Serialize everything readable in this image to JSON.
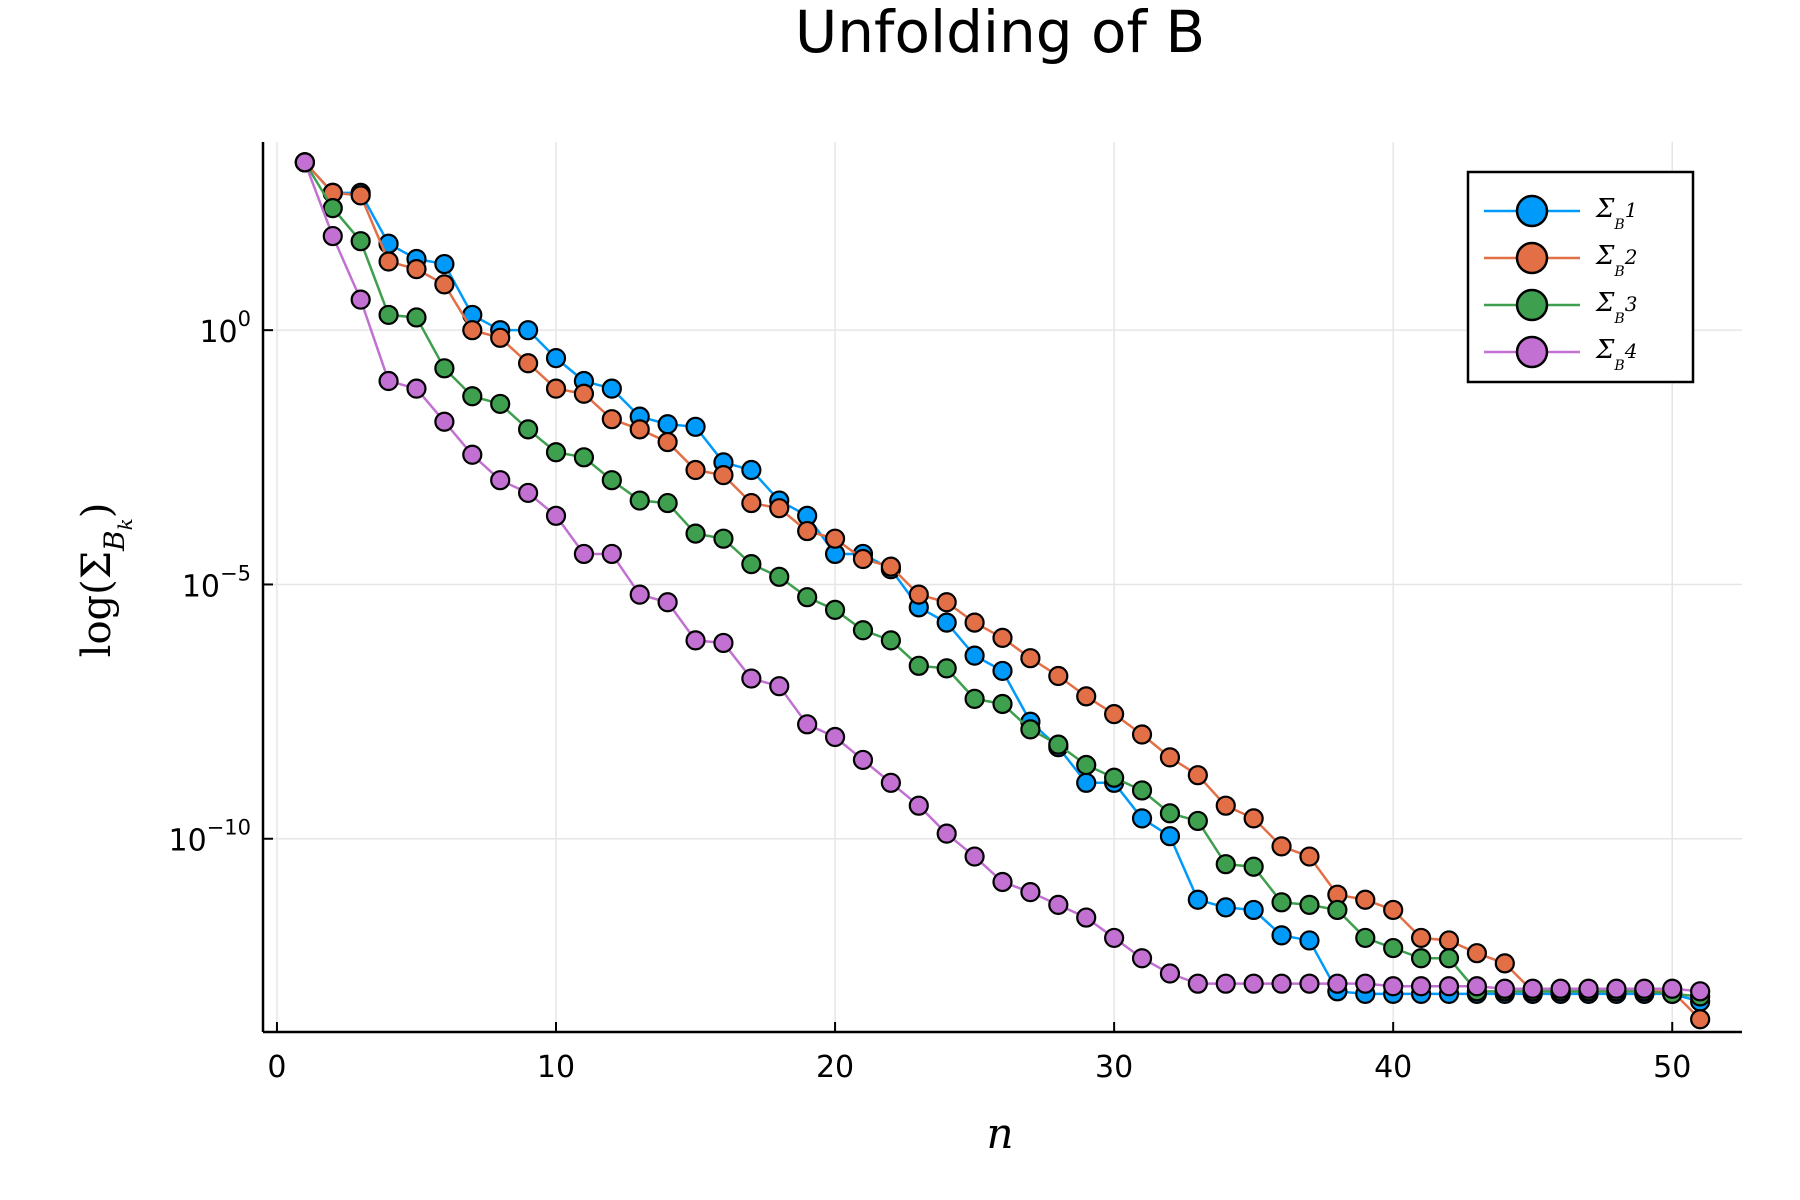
{
  "chart_data": {
    "type": "line",
    "title": "Unfolding of B",
    "xlabel": "n",
    "ylabel": "log(Σ_{B_k})",
    "yscale": "log10",
    "xlim": [
      -0.5,
      52.5
    ],
    "ylim_log10": [
      -13.8,
      3.7
    ],
    "xticks": [
      0,
      10,
      20,
      30,
      40,
      50
    ],
    "yticks": [
      {
        "exp": 0,
        "base": "10",
        "sup": "0"
      },
      {
        "exp": -5,
        "base": "10",
        "sup": "−5"
      },
      {
        "exp": -10,
        "base": "10",
        "sup": "−10"
      }
    ],
    "grid": true,
    "legend_position": "top-right",
    "x": [
      1,
      2,
      3,
      4,
      5,
      6,
      7,
      8,
      9,
      10,
      11,
      12,
      13,
      14,
      15,
      16,
      17,
      18,
      19,
      20,
      21,
      22,
      23,
      24,
      25,
      26,
      27,
      28,
      29,
      30,
      31,
      32,
      33,
      34,
      35,
      36,
      37,
      38,
      39,
      40,
      41,
      42,
      43,
      44,
      45,
      46,
      47,
      48,
      49,
      50,
      51
    ],
    "series": [
      {
        "name": "Σ_B1",
        "legend_main": "Σ",
        "legend_sub": "B",
        "legend_idx": "1",
        "color": "#009AFA",
        "log10_values": [
          3.3,
          2.7,
          2.7,
          1.7,
          1.4,
          1.3,
          0.3,
          0.0,
          0.0,
          -0.55,
          -1.0,
          -1.15,
          -1.7,
          -1.85,
          -1.9,
          -2.6,
          -2.75,
          -3.35,
          -3.65,
          -4.4,
          -4.4,
          -4.7,
          -5.45,
          -5.75,
          -6.4,
          -6.7,
          -7.7,
          -8.2,
          -8.9,
          -8.9,
          -9.6,
          -9.95,
          -11.2,
          -11.35,
          -11.4,
          -11.9,
          -12.0,
          -13.0,
          -13.05,
          -13.05,
          -13.05,
          -13.05,
          -13.05,
          -13.05,
          -13.05,
          -13.05,
          -13.05,
          -13.05,
          -13.05,
          -13.05,
          -13.2
        ]
      },
      {
        "name": "Σ_B2",
        "legend_main": "Σ",
        "legend_sub": "B",
        "legend_idx": "2",
        "color": "#E26F46",
        "log10_values": [
          3.3,
          2.7,
          2.65,
          1.35,
          1.2,
          0.9,
          0.0,
          -0.15,
          -0.65,
          -1.15,
          -1.25,
          -1.75,
          -1.95,
          -2.2,
          -2.75,
          -2.85,
          -3.4,
          -3.5,
          -3.95,
          -4.1,
          -4.5,
          -4.65,
          -5.2,
          -5.35,
          -5.75,
          -6.05,
          -6.45,
          -6.8,
          -7.2,
          -7.55,
          -7.95,
          -8.4,
          -8.75,
          -9.35,
          -9.6,
          -10.15,
          -10.35,
          -11.1,
          -11.2,
          -11.4,
          -11.95,
          -12.0,
          -12.25,
          -12.45,
          -13.0,
          -13.0,
          -13.0,
          -13.0,
          -13.0,
          -13.0,
          -13.55
        ]
      },
      {
        "name": "Σ_B3",
        "legend_main": "Σ",
        "legend_sub": "B",
        "legend_idx": "3",
        "color": "#3E9F4F",
        "log10_values": [
          3.3,
          2.4,
          1.75,
          0.3,
          0.25,
          -0.75,
          -1.3,
          -1.45,
          -1.95,
          -2.4,
          -2.5,
          -2.95,
          -3.35,
          -3.4,
          -4.0,
          -4.1,
          -4.6,
          -4.85,
          -5.25,
          -5.5,
          -5.9,
          -6.1,
          -6.6,
          -6.65,
          -7.25,
          -7.35,
          -7.85,
          -8.15,
          -8.55,
          -8.8,
          -9.05,
          -9.5,
          -9.65,
          -10.5,
          -10.55,
          -11.25,
          -11.3,
          -11.4,
          -11.95,
          -12.15,
          -12.35,
          -12.35,
          -13.0,
          -13.0,
          -13.0,
          -13.0,
          -13.0,
          -13.0,
          -13.0,
          -13.05,
          -13.1
        ]
      },
      {
        "name": "Σ_B4",
        "legend_main": "Σ",
        "legend_sub": "B",
        "legend_idx": "4",
        "color": "#C271D2",
        "log10_values": [
          3.3,
          1.85,
          0.6,
          -1.0,
          -1.15,
          -1.8,
          -2.45,
          -2.95,
          -3.2,
          -3.65,
          -4.4,
          -4.4,
          -5.2,
          -5.35,
          -6.1,
          -6.15,
          -6.85,
          -7.0,
          -7.75,
          -8.0,
          -8.45,
          -8.9,
          -9.35,
          -9.9,
          -10.35,
          -10.85,
          -11.05,
          -11.3,
          -11.55,
          -11.95,
          -12.35,
          -12.65,
          -12.85,
          -12.85,
          -12.85,
          -12.85,
          -12.85,
          -12.85,
          -12.85,
          -12.9,
          -12.9,
          -12.9,
          -12.9,
          -12.95,
          -12.95,
          -12.95,
          -12.95,
          -12.95,
          -12.95,
          -12.95,
          -13.0
        ]
      }
    ]
  }
}
